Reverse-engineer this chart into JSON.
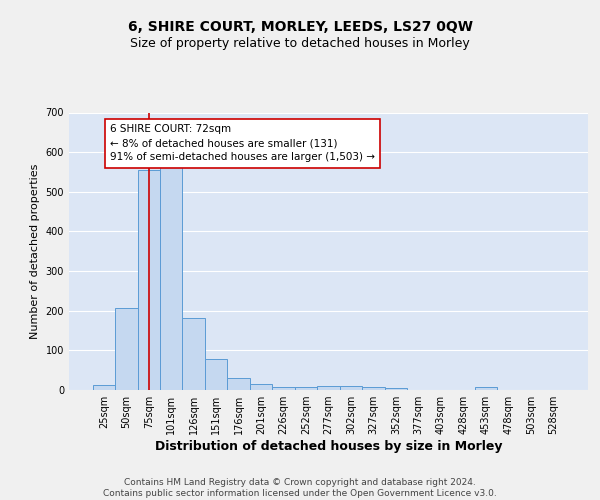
{
  "title1": "6, SHIRE COURT, MORLEY, LEEDS, LS27 0QW",
  "title2": "Size of property relative to detached houses in Morley",
  "xlabel": "Distribution of detached houses by size in Morley",
  "ylabel": "Number of detached properties",
  "bar_labels": [
    "25sqm",
    "50sqm",
    "75sqm",
    "101sqm",
    "126sqm",
    "151sqm",
    "176sqm",
    "201sqm",
    "226sqm",
    "252sqm",
    "277sqm",
    "302sqm",
    "327sqm",
    "352sqm",
    "377sqm",
    "403sqm",
    "428sqm",
    "453sqm",
    "478sqm",
    "503sqm",
    "528sqm"
  ],
  "bar_values": [
    12,
    206,
    556,
    565,
    181,
    79,
    30,
    14,
    8,
    8,
    10,
    10,
    8,
    4,
    0,
    0,
    0,
    7,
    0,
    0,
    0
  ],
  "bar_color": "#c5d8f0",
  "bar_edge_color": "#5b9bd5",
  "bg_color": "#dce6f5",
  "grid_color": "#ffffff",
  "property_line_color": "#cc0000",
  "annotation_text": "6 SHIRE COURT: 72sqm\n← 8% of detached houses are smaller (131)\n91% of semi-detached houses are larger (1,503) →",
  "annotation_box_color": "#ffffff",
  "annotation_box_edge": "#cc0000",
  "ylim": [
    0,
    700
  ],
  "yticks": [
    0,
    100,
    200,
    300,
    400,
    500,
    600,
    700
  ],
  "footer_text": "Contains HM Land Registry data © Crown copyright and database right 2024.\nContains public sector information licensed under the Open Government Licence v3.0.",
  "fig_bg": "#f0f0f0",
  "title1_fontsize": 10,
  "title2_fontsize": 9,
  "xlabel_fontsize": 9,
  "ylabel_fontsize": 8,
  "tick_fontsize": 7,
  "annotation_fontsize": 7.5,
  "footer_fontsize": 6.5
}
